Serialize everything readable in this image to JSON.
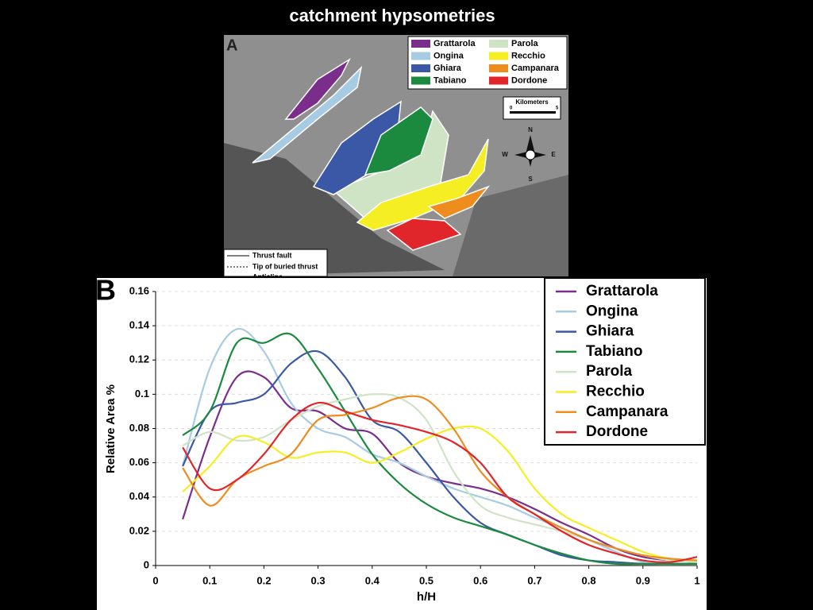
{
  "title": "catchment hypsometries",
  "map": {
    "label": "A",
    "legend": [
      {
        "name": "Grattarola",
        "color": "#7b2d8b"
      },
      {
        "name": "Parola",
        "color": "#cfe3c5"
      },
      {
        "name": "Ongina",
        "color": "#a6cbe3"
      },
      {
        "name": "Recchio",
        "color": "#f5ee22"
      },
      {
        "name": "Ghiara",
        "color": "#3a58a6"
      },
      {
        "name": "Campanara",
        "color": "#ef8c1e"
      },
      {
        "name": "Tabiano",
        "color": "#1b8a3e"
      },
      {
        "name": "Dordone",
        "color": "#e0262a"
      }
    ],
    "scale": {
      "title": "Kilometers",
      "ticks": [
        "0",
        "5"
      ]
    },
    "compass": [
      "N",
      "E",
      "S",
      "W"
    ],
    "key": [
      "Thrust fault",
      "Tip of buried thrust",
      "Anticline"
    ]
  },
  "chart_data": {
    "type": "line",
    "panel_label": "B",
    "xlabel": "h/H",
    "ylabel": "Relative Area %",
    "x": [
      0.05,
      0.1,
      0.15,
      0.2,
      0.25,
      0.3,
      0.35,
      0.4,
      0.45,
      0.5,
      0.55,
      0.6,
      0.65,
      0.7,
      0.75,
      0.8,
      0.85,
      0.9,
      0.95,
      1.0
    ],
    "series": [
      {
        "name": "Grattarola",
        "color": "#7b2d8b",
        "values": [
          0.027,
          0.075,
          0.11,
          0.11,
          0.092,
          0.09,
          0.08,
          0.077,
          0.06,
          0.052,
          0.048,
          0.045,
          0.04,
          0.033,
          0.025,
          0.018,
          0.01,
          0.005,
          0.003,
          0.002
        ]
      },
      {
        "name": "Ongina",
        "color": "#a6cbe3",
        "values": [
          0.058,
          0.115,
          0.138,
          0.125,
          0.095,
          0.08,
          0.075,
          0.065,
          0.06,
          0.052,
          0.045,
          0.04,
          0.035,
          0.028,
          0.022,
          0.015,
          0.008,
          0.002,
          0.001,
          0.001
        ]
      },
      {
        "name": "Ghiara",
        "color": "#3a58a6",
        "values": [
          0.058,
          0.09,
          0.095,
          0.1,
          0.118,
          0.125,
          0.11,
          0.085,
          0.078,
          0.06,
          0.04,
          0.025,
          0.018,
          0.012,
          0.006,
          0.003,
          0.002,
          0.001,
          0.001,
          0.001
        ]
      },
      {
        "name": "Tabiano",
        "color": "#1b8a3e",
        "values": [
          0.076,
          0.09,
          0.13,
          0.13,
          0.135,
          0.115,
          0.09,
          0.065,
          0.048,
          0.036,
          0.028,
          0.023,
          0.018,
          0.012,
          0.007,
          0.003,
          0.001,
          0.001,
          0.001,
          0.001
        ]
      },
      {
        "name": "Parola",
        "color": "#cfe3c5",
        "values": [
          0.07,
          0.078,
          0.073,
          0.075,
          0.085,
          0.093,
          0.097,
          0.1,
          0.098,
          0.085,
          0.055,
          0.035,
          0.028,
          0.024,
          0.02,
          0.015,
          0.01,
          0.006,
          0.003,
          0.002
        ]
      },
      {
        "name": "Recchio",
        "color": "#f5ee22",
        "values": [
          0.043,
          0.058,
          0.075,
          0.072,
          0.063,
          0.066,
          0.066,
          0.06,
          0.066,
          0.074,
          0.08,
          0.08,
          0.067,
          0.045,
          0.03,
          0.022,
          0.015,
          0.008,
          0.004,
          0.003
        ]
      },
      {
        "name": "Campanara",
        "color": "#ef8c1e",
        "values": [
          0.057,
          0.035,
          0.05,
          0.058,
          0.065,
          0.085,
          0.088,
          0.092,
          0.098,
          0.097,
          0.08,
          0.055,
          0.04,
          0.03,
          0.022,
          0.015,
          0.01,
          0.006,
          0.004,
          0.003
        ]
      },
      {
        "name": "Dordone",
        "color": "#e0262a",
        "values": [
          0.069,
          0.045,
          0.05,
          0.065,
          0.085,
          0.095,
          0.09,
          0.085,
          0.082,
          0.078,
          0.072,
          0.06,
          0.04,
          0.03,
          0.02,
          0.012,
          0.007,
          0.003,
          0.002,
          0.005
        ]
      }
    ],
    "xlim": [
      0,
      1
    ],
    "xticks": [
      0,
      0.1,
      0.2,
      0.3,
      0.4,
      0.5,
      0.6,
      0.7,
      0.8,
      0.9,
      1
    ],
    "ylim": [
      0,
      0.16
    ],
    "yticks": [
      0,
      0.02,
      0.04,
      0.06,
      0.08,
      0.1,
      0.12,
      0.14,
      0.16
    ],
    "grid": true,
    "legend": "upper right"
  }
}
